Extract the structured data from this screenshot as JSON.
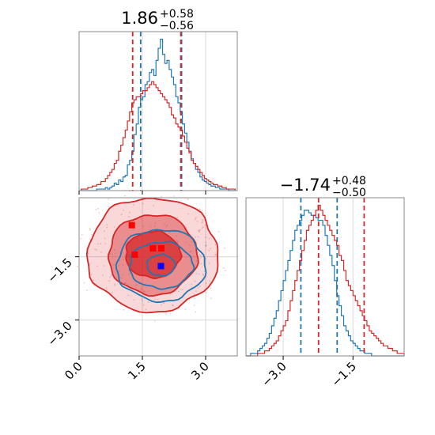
{
  "chart_data": [
    {
      "panel": "marginal_param1",
      "type": "histogram",
      "title": {
        "value": "1.86",
        "upper": "+0.58",
        "lower": "−0.56"
      },
      "xlim": [
        0.0,
        3.75
      ],
      "xticks": [
        0.0,
        1.5,
        3.0
      ],
      "series": [
        {
          "color": "#1f77b4",
          "quantiles": [
            1.46,
            2.43
          ],
          "bin_edges": [
            0.05,
            3.7
          ],
          "counts": [
            0,
            0,
            0,
            0,
            0,
            0,
            0,
            1,
            1,
            1,
            1,
            2,
            1,
            2,
            3,
            5,
            4,
            7,
            6,
            9,
            10,
            17,
            20,
            26,
            37,
            44,
            55,
            60,
            62,
            70,
            72,
            78,
            80,
            76,
            86,
            94,
            100,
            90,
            84,
            86,
            80,
            75,
            70,
            62,
            58,
            52,
            44,
            38,
            32,
            26,
            21,
            18,
            14,
            12,
            9,
            7,
            6,
            5,
            4,
            3,
            3,
            2,
            2,
            1,
            1,
            1,
            1,
            0,
            0,
            0
          ]
        },
        {
          "color": "#d62728",
          "quantiles": [
            1.27,
            2.41
          ],
          "bin_edges": [
            0.05,
            3.7
          ],
          "counts": [
            1,
            1,
            1,
            2,
            2,
            3,
            3,
            4,
            4,
            6,
            6,
            8,
            10,
            12,
            14,
            18,
            20,
            26,
            30,
            35,
            40,
            46,
            52,
            58,
            60,
            62,
            62,
            64,
            66,
            66,
            68,
            70,
            72,
            70,
            68,
            66,
            64,
            62,
            60,
            58,
            55,
            50,
            48,
            44,
            42,
            40,
            36,
            32,
            28,
            25,
            20,
            18,
            16,
            14,
            12,
            10,
            8,
            7,
            6,
            5,
            4,
            4,
            3,
            3,
            2,
            2,
            1,
            1,
            1,
            1
          ]
        }
      ]
    },
    {
      "panel": "marginal_param2",
      "type": "histogram",
      "title": {
        "value": "−1.74",
        "upper": "+0.48",
        "lower": "−0.50"
      },
      "xlim": [
        -3.8,
        -0.4
      ],
      "xticks": [
        -3.0,
        -1.5
      ],
      "xtick_labels": [
        "−3.0",
        "−1.5"
      ],
      "series": [
        {
          "color": "#1f77b4",
          "quantiles": [
            -2.62,
            -1.84
          ],
          "bin_edges": [
            -3.8,
            -0.4
          ],
          "counts": [
            0,
            0,
            1,
            1,
            1,
            2,
            3,
            4,
            5,
            7,
            9,
            12,
            15,
            18,
            22,
            26,
            30,
            34,
            38,
            42,
            46,
            50,
            52,
            54,
            56,
            58,
            58,
            57,
            56,
            56,
            55,
            54,
            54,
            52,
            48,
            44,
            40,
            36,
            30,
            24,
            20,
            16,
            12,
            10,
            8,
            6,
            5,
            4,
            3,
            2,
            2,
            1,
            1,
            1,
            0,
            0,
            0,
            0,
            0,
            0,
            0,
            0,
            0,
            0,
            0,
            0,
            0,
            0
          ]
        },
        {
          "color": "#d62728",
          "quantiles": [
            -2.24,
            -1.26
          ],
          "bin_edges": [
            -3.8,
            -0.4
          ],
          "counts": [
            0,
            0,
            0,
            0,
            0,
            1,
            1,
            1,
            2,
            2,
            3,
            4,
            5,
            6,
            8,
            10,
            12,
            14,
            18,
            22,
            26,
            30,
            34,
            38,
            42,
            46,
            50,
            52,
            54,
            56,
            58,
            60,
            58,
            56,
            54,
            52,
            50,
            48,
            46,
            44,
            40,
            38,
            34,
            30,
            28,
            26,
            24,
            22,
            20,
            18,
            16,
            14,
            12,
            10,
            9,
            8,
            7,
            6,
            5,
            4,
            4,
            3,
            3,
            2,
            2,
            1,
            1,
            1
          ]
        }
      ]
    },
    {
      "panel": "joint",
      "type": "contour",
      "xlim": [
        0.0,
        3.75
      ],
      "ylim": [
        -3.85,
        -0.1
      ],
      "xticks": [
        0.0,
        1.5,
        3.0
      ],
      "yticks": [
        -1.5,
        -3.0
      ],
      "ytick_labels": [
        "−1.5",
        "−3.0"
      ],
      "series": [
        {
          "color": "#1f77b4",
          "filled": false,
          "center": [
            1.94,
            -1.7
          ],
          "contour_radii": [
            [
              0.33,
              0.25
            ],
            [
              0.75,
              0.55
            ],
            [
              1.05,
              0.85
            ]
          ],
          "markers": [
            [
              1.94,
              -1.72
            ]
          ]
        },
        {
          "color": "#d62728",
          "filled": true,
          "center": [
            1.75,
            -1.45
          ],
          "contour_radii": [
            [
              0.65,
              0.55
            ],
            [
              1.05,
              0.95
            ],
            [
              1.55,
              1.35
            ]
          ],
          "markers": [
            [
              1.25,
              -0.75
            ],
            [
              1.32,
              -1.45
            ],
            [
              1.75,
              -1.3
            ],
            [
              1.95,
              -1.3
            ]
          ]
        }
      ]
    }
  ]
}
